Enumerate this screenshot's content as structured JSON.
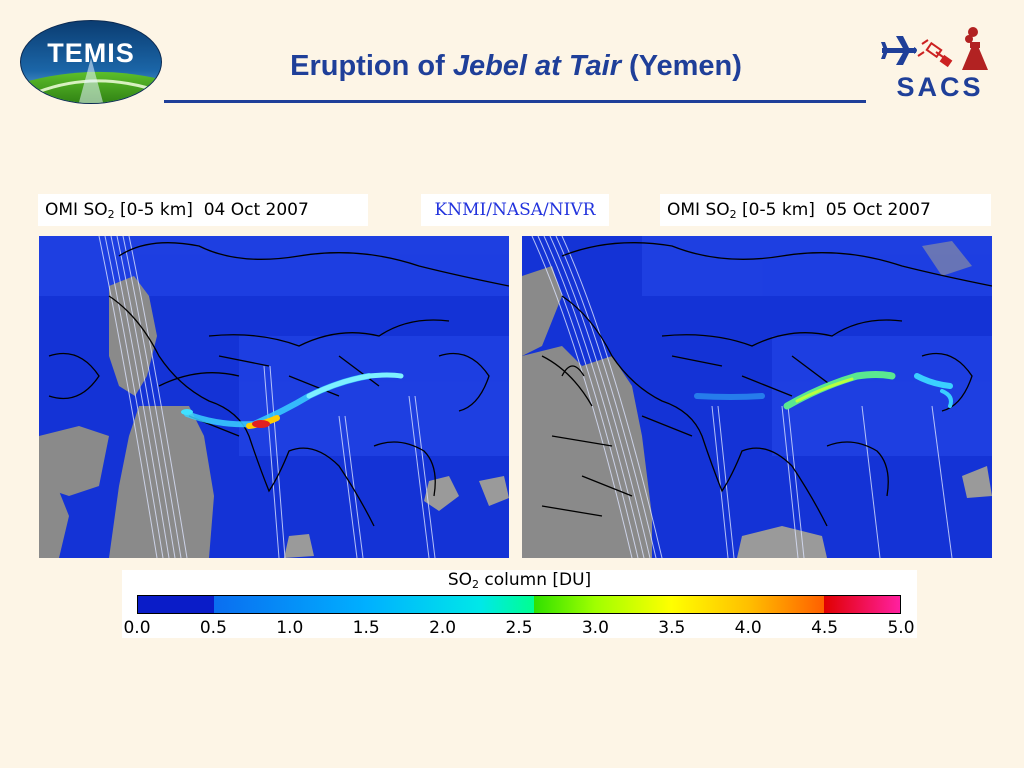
{
  "header": {
    "title_pre": "Eruption of ",
    "title_italic": "Jebel at Tair",
    "title_post": " (Yemen)",
    "logo_left_text": "TEMIS",
    "logo_right_text": "SACS"
  },
  "maps": [
    {
      "label_pre": "OMI SO",
      "label_sub": "2",
      "label_post": " [0-5 km]  04 Oct 2007"
    },
    {
      "label_pre": "OMI SO",
      "label_sub": "2",
      "label_post": " [0-5 km]  05 Oct 2007"
    }
  ],
  "credit": "KNMI/NASA/NIVR",
  "colorbar": {
    "title_pre": "SO",
    "title_sub": "2",
    "title_post": " column [DU]",
    "ticks": [
      "0.0",
      "0.5",
      "1.0",
      "1.5",
      "2.0",
      "2.5",
      "3.0",
      "3.5",
      "4.0",
      "4.5",
      "5.0"
    ],
    "min": 0.0,
    "max": 5.0
  },
  "colors": {
    "title": "#1f3f99",
    "background": "#fdf5e6",
    "ocean_so2_background": "#1433d6",
    "land_no_data": "#8a8a8a"
  }
}
